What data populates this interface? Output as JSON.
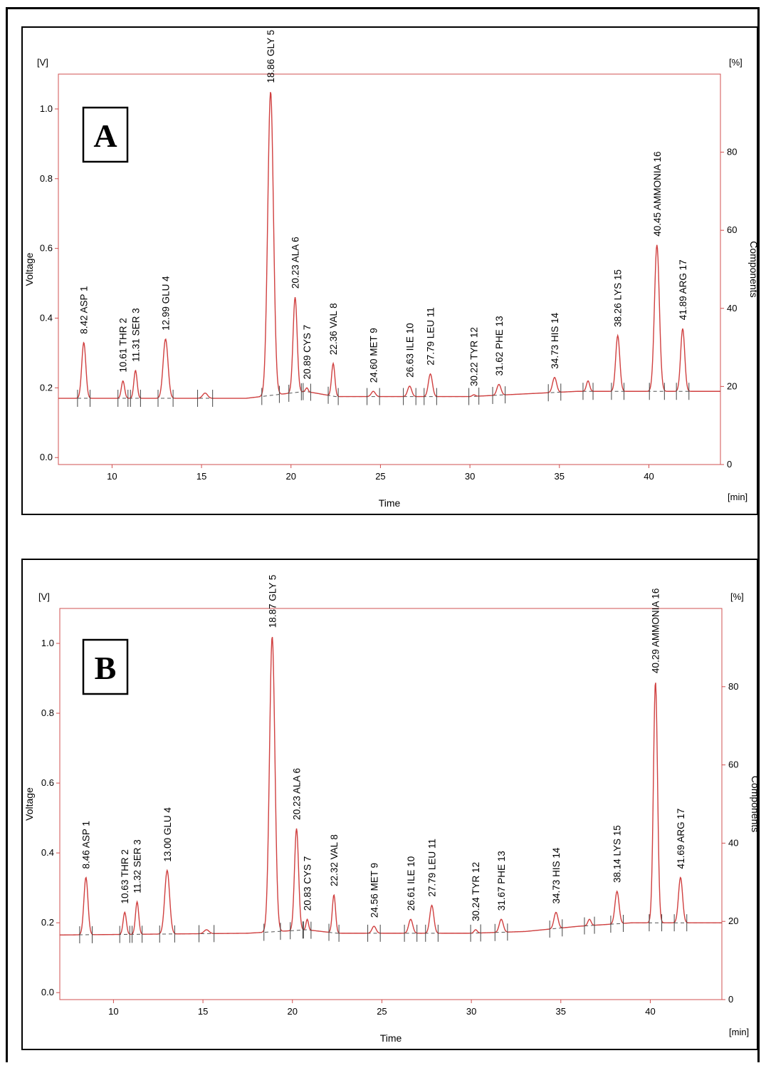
{
  "chart_data": [
    {
      "type": "line",
      "panel_label": "A",
      "y_unit": "[V]",
      "y2_unit": "[%]",
      "x_unit": "[min]",
      "ylabel": "Voltage",
      "y2label": "Components",
      "xlabel": "Time",
      "xlim": [
        7,
        44
      ],
      "ylim": [
        -0.02,
        1.1
      ],
      "y2lim": [
        0,
        100
      ],
      "xticks": [
        10,
        15,
        20,
        25,
        30,
        35,
        40
      ],
      "yticks": [
        0.0,
        0.2,
        0.4,
        0.6,
        0.8,
        1.0
      ],
      "yticklabels": [
        "0.0",
        "0.2",
        "0.4",
        "0.6",
        "0.8",
        "1.0"
      ],
      "y2ticks": [
        0,
        20,
        40,
        60,
        80
      ],
      "line_color": "#d04040",
      "baseline_start": [
        7,
        0.17
      ],
      "baseline_points": [
        [
          7,
          0.17
        ],
        [
          17.5,
          0.17
        ],
        [
          20.8,
          0.19
        ],
        [
          22.5,
          0.175
        ],
        [
          30,
          0.175
        ],
        [
          32,
          0.18
        ],
        [
          36,
          0.19
        ],
        [
          39,
          0.19
        ],
        [
          44,
          0.19
        ]
      ],
      "peaks": [
        {
          "time": 8.42,
          "height": 0.33,
          "label": "8.42 ASP  1",
          "width": 0.25
        },
        {
          "time": 10.61,
          "height": 0.22,
          "label": "10.61 THR  2",
          "width": 0.2
        },
        {
          "time": 11.31,
          "height": 0.25,
          "label": "11.31 SER  3",
          "width": 0.2
        },
        {
          "time": 12.99,
          "height": 0.34,
          "label": "12.99 GLU  4",
          "width": 0.3
        },
        {
          "time": 15.2,
          "height": 0.185,
          "label": "",
          "width": 0.3
        },
        {
          "time": 18.86,
          "height": 1.05,
          "label": "18.86 GLY  5",
          "width": 0.35
        },
        {
          "time": 20.23,
          "height": 0.46,
          "label": "20.23 ALA  6",
          "width": 0.25
        },
        {
          "time": 20.89,
          "height": 0.2,
          "label": "20.89 CYS  7",
          "width": 0.15
        },
        {
          "time": 22.36,
          "height": 0.27,
          "label": "22.36 VAL  8",
          "width": 0.2
        },
        {
          "time": 24.6,
          "height": 0.19,
          "label": "24.60 MET  9",
          "width": 0.25
        },
        {
          "time": 26.63,
          "height": 0.205,
          "label": "26.63 ILE  10",
          "width": 0.25
        },
        {
          "time": 27.79,
          "height": 0.24,
          "label": "27.79 LEU  11",
          "width": 0.25
        },
        {
          "time": 30.22,
          "height": 0.18,
          "label": "30.22 TYR  12",
          "width": 0.2
        },
        {
          "time": 31.62,
          "height": 0.21,
          "label": "31.62 PHE  13",
          "width": 0.25
        },
        {
          "time": 34.73,
          "height": 0.23,
          "label": "34.73 HIS  14",
          "width": 0.25
        },
        {
          "time": 36.6,
          "height": 0.22,
          "label": "",
          "width": 0.2
        },
        {
          "time": 38.26,
          "height": 0.35,
          "label": "38.26 LYS  15",
          "width": 0.25
        },
        {
          "time": 40.45,
          "height": 0.61,
          "label": "40.45 AMMONIA  16",
          "width": 0.3
        },
        {
          "time": 41.89,
          "height": 0.37,
          "label": "41.89 ARG  17",
          "width": 0.25
        }
      ]
    },
    {
      "type": "line",
      "panel_label": "B",
      "y_unit": "[V]",
      "y2_unit": "[%]",
      "x_unit": "[min]",
      "ylabel": "Voltage",
      "y2label": "Components",
      "xlabel": "Time",
      "xlim": [
        7,
        44
      ],
      "ylim": [
        -0.02,
        1.1
      ],
      "y2lim": [
        0,
        100
      ],
      "xticks": [
        10,
        15,
        20,
        25,
        30,
        35,
        40
      ],
      "yticks": [
        0.0,
        0.2,
        0.4,
        0.6,
        0.8,
        1.0
      ],
      "yticklabels": [
        "0.0",
        "0.2",
        "0.4",
        "0.6",
        "0.8",
        "1.0"
      ],
      "y2ticks": [
        0,
        20,
        40,
        60,
        80
      ],
      "line_color": "#d04040",
      "baseline_start": [
        7,
        0.165
      ],
      "baseline_points": [
        [
          7,
          0.165
        ],
        [
          17.5,
          0.17
        ],
        [
          20.8,
          0.18
        ],
        [
          22.5,
          0.17
        ],
        [
          30,
          0.17
        ],
        [
          33,
          0.175
        ],
        [
          36,
          0.19
        ],
        [
          39,
          0.2
        ],
        [
          44,
          0.2
        ]
      ],
      "peaks": [
        {
          "time": 8.46,
          "height": 0.33,
          "label": "8.46 ASP  1",
          "width": 0.25
        },
        {
          "time": 10.63,
          "height": 0.23,
          "label": "10.63 THR  2",
          "width": 0.2
        },
        {
          "time": 11.32,
          "height": 0.26,
          "label": "11.32 SER  3",
          "width": 0.2
        },
        {
          "time": 13.0,
          "height": 0.35,
          "label": "13.00 GLU  4",
          "width": 0.3
        },
        {
          "time": 15.2,
          "height": 0.18,
          "label": "",
          "width": 0.3
        },
        {
          "time": 18.87,
          "height": 1.02,
          "label": "18.87 GLY  5",
          "width": 0.33
        },
        {
          "time": 20.23,
          "height": 0.47,
          "label": "20.23 ALA  6",
          "width": 0.25
        },
        {
          "time": 20.83,
          "height": 0.21,
          "label": "20.83 CYS  7",
          "width": 0.15
        },
        {
          "time": 22.32,
          "height": 0.28,
          "label": "22.32 VAL  8",
          "width": 0.2
        },
        {
          "time": 24.56,
          "height": 0.19,
          "label": "24.56 MET  9",
          "width": 0.25
        },
        {
          "time": 26.61,
          "height": 0.21,
          "label": "26.61 ILE  10",
          "width": 0.25
        },
        {
          "time": 27.79,
          "height": 0.25,
          "label": "27.79 LEU  11",
          "width": 0.25
        },
        {
          "time": 30.24,
          "height": 0.18,
          "label": "30.24 TYR  12",
          "width": 0.2
        },
        {
          "time": 31.67,
          "height": 0.21,
          "label": "31.67 PHE  13",
          "width": 0.25
        },
        {
          "time": 34.73,
          "height": 0.23,
          "label": "34.73 HIS  14",
          "width": 0.25
        },
        {
          "time": 36.6,
          "height": 0.21,
          "label": "",
          "width": 0.2
        },
        {
          "time": 38.14,
          "height": 0.29,
          "label": "38.14 LYS  15",
          "width": 0.25
        },
        {
          "time": 40.29,
          "height": 0.89,
          "label": "40.29 AMMONIA  16",
          "width": 0.25
        },
        {
          "time": 41.69,
          "height": 0.33,
          "label": "41.69 ARG  17",
          "width": 0.25
        }
      ]
    }
  ]
}
